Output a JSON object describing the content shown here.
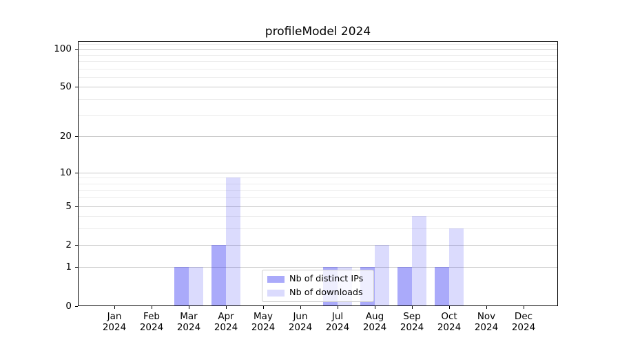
{
  "figure": {
    "background": "#ffffff"
  },
  "chart_data": {
    "type": "bar",
    "title": "profileModel 2024",
    "x_months": [
      "Jan",
      "Feb",
      "Mar",
      "Apr",
      "May",
      "Jun",
      "Jul",
      "Aug",
      "Sep",
      "Oct",
      "Nov",
      "Dec"
    ],
    "x_year": "2024",
    "categories": [
      "Jan 2024",
      "Feb 2024",
      "Mar 2024",
      "Apr 2024",
      "May 2024",
      "Jun 2024",
      "Jul 2024",
      "Aug 2024",
      "Sep 2024",
      "Oct 2024",
      "Nov 2024",
      "Dec 2024"
    ],
    "series": [
      {
        "name": "Nb of distinct IPs",
        "color": "#2a2af2",
        "alpha": 0.4,
        "values": [
          0,
          0,
          1,
          2,
          0,
          0,
          1,
          1,
          1,
          1,
          0,
          0
        ]
      },
      {
        "name": "Nb of downloads",
        "color": "#2a2af2",
        "alpha": 0.17,
        "values": [
          0,
          0,
          1,
          9,
          0,
          0,
          1,
          2,
          4,
          3,
          0,
          0
        ]
      }
    ],
    "xlabel": "",
    "ylabel": "",
    "yscale": "log1p",
    "ylim": [
      0,
      115
    ],
    "yticks": [
      0,
      1,
      2,
      5,
      10,
      20,
      50,
      100
    ],
    "yticks_minor": [
      3,
      4,
      6,
      7,
      8,
      9,
      30,
      40,
      60,
      70,
      80,
      90,
      110
    ],
    "grid": "horizontal",
    "grid_major_color": "#c8c8c8",
    "grid_minor_color": "#ececec",
    "legend_position": "lower center inside",
    "legend_frame_alpha": 0.8
  }
}
